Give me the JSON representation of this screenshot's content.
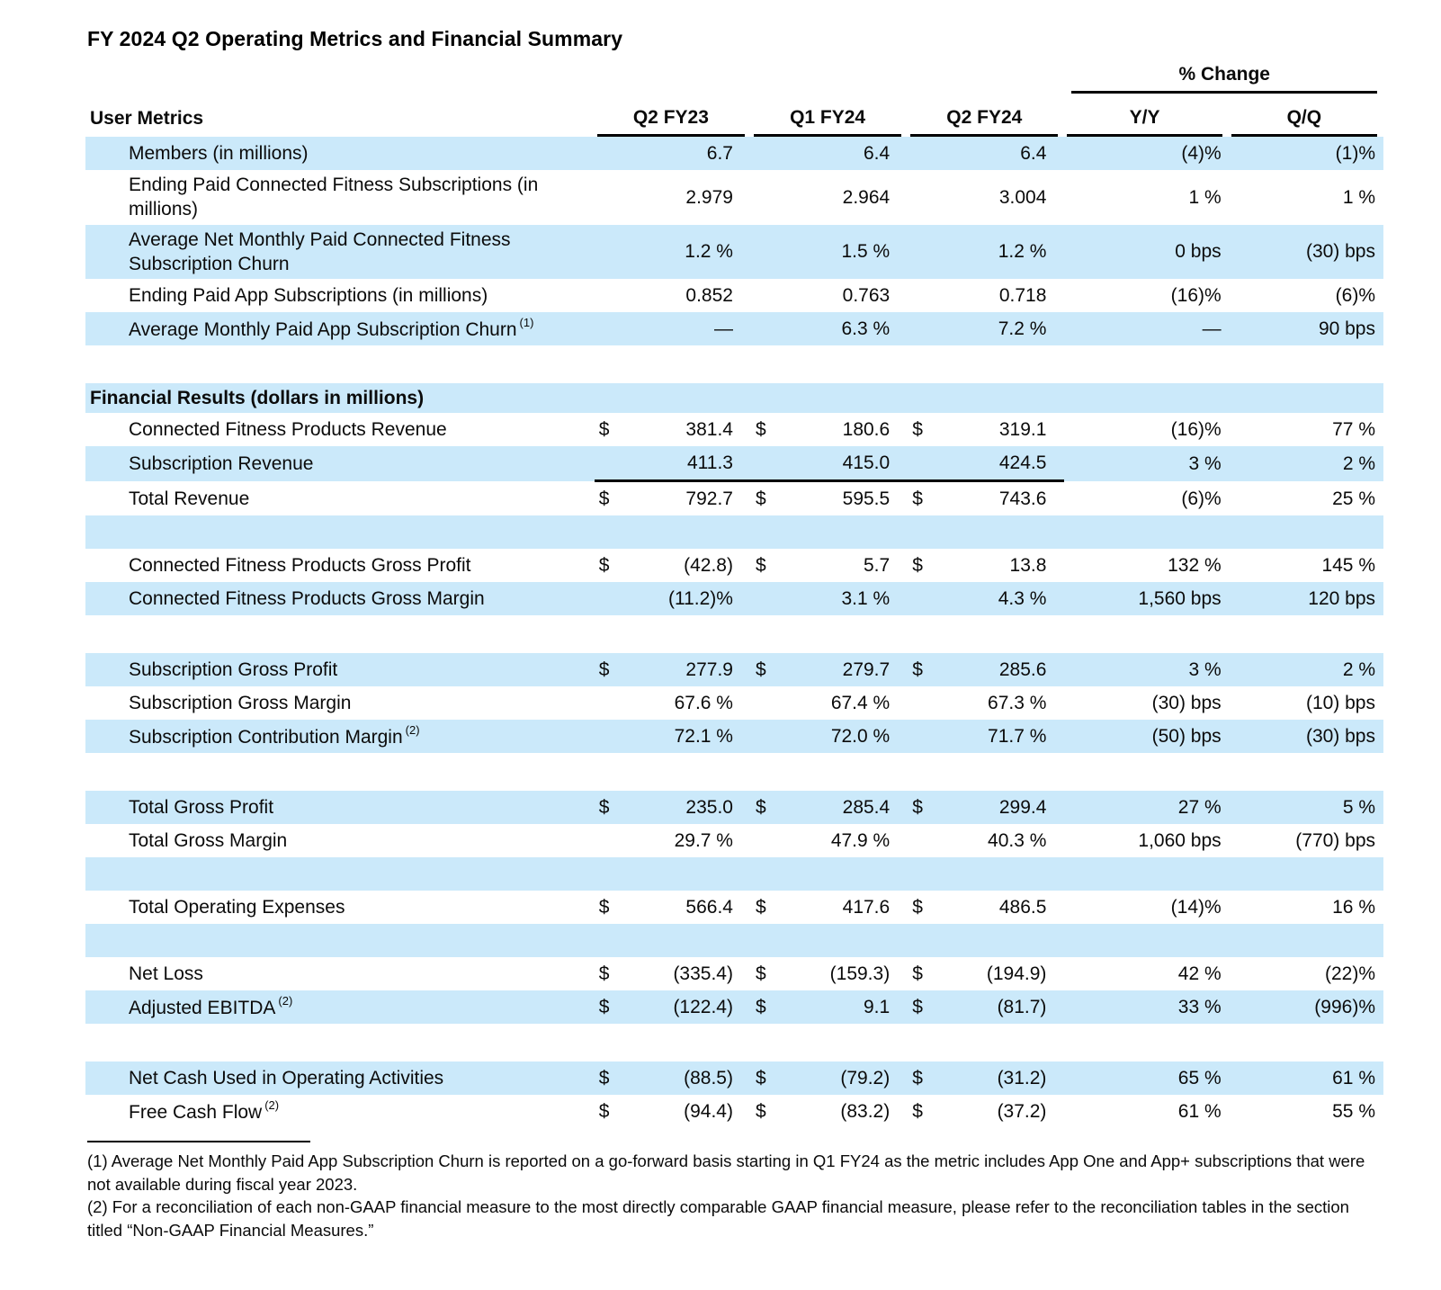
{
  "title": "FY 2024 Q2 Operating Metrics and Financial Summary",
  "table": {
    "change_header": "% Change",
    "columns": {
      "label": "User Metrics",
      "q1": "Q2 FY23",
      "q2": "Q1 FY24",
      "q3": "Q2 FY24",
      "yy": "Y/Y",
      "qq": "Q/Q"
    },
    "rows": [
      {
        "type": "data",
        "bg": "blue",
        "label": "Members (in millions)",
        "sup": "",
        "d1": "",
        "v1": "6.7",
        "d2": "",
        "v2": "6.4",
        "d3": "",
        "v3": "6.4",
        "yy": "(4)%",
        "qq": "(1)%"
      },
      {
        "type": "data",
        "bg": "white",
        "label": "Ending Paid Connected Fitness Subscriptions (in millions)",
        "sup": "",
        "d1": "",
        "v1": "2.979",
        "d2": "",
        "v2": "2.964",
        "d3": "",
        "v3": "3.004",
        "yy": "1 %",
        "qq": "1 %"
      },
      {
        "type": "data",
        "bg": "blue",
        "label": "Average Net Monthly Paid Connected Fitness Subscription Churn",
        "sup": "",
        "d1": "",
        "v1": "1.2 %",
        "d2": "",
        "v2": "1.5 %",
        "d3": "",
        "v3": "1.2 %",
        "yy": "0 bps",
        "qq": "(30) bps"
      },
      {
        "type": "data",
        "bg": "white",
        "label": "Ending Paid App Subscriptions (in millions)",
        "sup": "",
        "d1": "",
        "v1": "0.852",
        "d2": "",
        "v2": "0.763",
        "d3": "",
        "v3": "0.718",
        "yy": "(16)%",
        "qq": "(6)%"
      },
      {
        "type": "data",
        "bg": "blue",
        "label": "Average Monthly Paid App Subscription Churn",
        "sup": "(1)",
        "d1": "",
        "v1": "—",
        "d2": "",
        "v2": "6.3 %",
        "d3": "",
        "v3": "7.2 %",
        "yy": "—",
        "qq": "90 bps"
      },
      {
        "type": "gap"
      },
      {
        "type": "section",
        "bg": "blue",
        "label": "Financial Results (dollars in millions)"
      },
      {
        "type": "data",
        "bg": "white",
        "label": "Connected Fitness Products Revenue",
        "sup": "",
        "d1": "$",
        "v1": "381.4",
        "d2": "$",
        "v2": "180.6",
        "d3": "$",
        "v3": "319.1",
        "yy": "(16)%",
        "qq": "77 %"
      },
      {
        "type": "data",
        "bg": "blue",
        "label": "Subscription Revenue",
        "sup": "",
        "d1": "",
        "v1": "411.3",
        "d2": "",
        "v2": "415.0",
        "d3": "",
        "v3": "424.5",
        "yy": "3 %",
        "qq": "2 %",
        "sumline": true
      },
      {
        "type": "data",
        "bg": "white",
        "label": "Total Revenue",
        "sup": "",
        "d1": "$",
        "v1": "792.7",
        "d2": "$",
        "v2": "595.5",
        "d3": "$",
        "v3": "743.6",
        "yy": "(6)%",
        "qq": "25 %"
      },
      {
        "type": "blank",
        "bg": "blue"
      },
      {
        "type": "data",
        "bg": "white",
        "label": "Connected Fitness Products Gross Profit",
        "sup": "",
        "d1": "$",
        "v1": "(42.8)",
        "d2": "$",
        "v2": "5.7",
        "d3": "$",
        "v3": "13.8",
        "yy": "132 %",
        "qq": "145 %"
      },
      {
        "type": "data",
        "bg": "blue",
        "label": "Connected Fitness Products Gross Margin",
        "sup": "",
        "d1": "",
        "v1": "(11.2)%",
        "d2": "",
        "v2": "3.1 %",
        "d3": "",
        "v3": "4.3 %",
        "yy": "1,560 bps",
        "qq": "120 bps"
      },
      {
        "type": "gap"
      },
      {
        "type": "data",
        "bg": "blue",
        "label": "Subscription Gross Profit",
        "sup": "",
        "d1": "$",
        "v1": "277.9",
        "d2": "$",
        "v2": "279.7",
        "d3": "$",
        "v3": "285.6",
        "yy": "3 %",
        "qq": "2 %"
      },
      {
        "type": "data",
        "bg": "white",
        "label": "Subscription Gross Margin",
        "sup": "",
        "d1": "",
        "v1": "67.6 %",
        "d2": "",
        "v2": "67.4 %",
        "d3": "",
        "v3": "67.3 %",
        "yy": "(30) bps",
        "qq": "(10) bps"
      },
      {
        "type": "data",
        "bg": "blue",
        "label": "Subscription Contribution Margin",
        "sup": "(2)",
        "d1": "",
        "v1": "72.1 %",
        "d2": "",
        "v2": "72.0 %",
        "d3": "",
        "v3": "71.7 %",
        "yy": "(50) bps",
        "qq": "(30) bps"
      },
      {
        "type": "gap"
      },
      {
        "type": "data",
        "bg": "blue",
        "label": "Total Gross Profit",
        "sup": "",
        "d1": "$",
        "v1": "235.0",
        "d2": "$",
        "v2": "285.4",
        "d3": "$",
        "v3": "299.4",
        "yy": "27 %",
        "qq": "5 %"
      },
      {
        "type": "data",
        "bg": "white",
        "label": "Total Gross Margin",
        "sup": "",
        "d1": "",
        "v1": "29.7 %",
        "d2": "",
        "v2": "47.9 %",
        "d3": "",
        "v3": "40.3 %",
        "yy": "1,060 bps",
        "qq": "(770) bps"
      },
      {
        "type": "blank",
        "bg": "blue"
      },
      {
        "type": "data",
        "bg": "white",
        "label": "Total Operating Expenses",
        "sup": "",
        "d1": "$",
        "v1": "566.4",
        "d2": "$",
        "v2": "417.6",
        "d3": "$",
        "v3": "486.5",
        "yy": "(14)%",
        "qq": "16 %"
      },
      {
        "type": "blank",
        "bg": "blue"
      },
      {
        "type": "data",
        "bg": "white",
        "label": "Net Loss",
        "sup": "",
        "d1": "$",
        "v1": "(335.4)",
        "d2": "$",
        "v2": "(159.3)",
        "d3": "$",
        "v3": "(194.9)",
        "yy": "42 %",
        "qq": "(22)%"
      },
      {
        "type": "data",
        "bg": "blue",
        "label": "Adjusted EBITDA",
        "sup": "(2)",
        "d1": "$",
        "v1": "(122.4)",
        "d2": "$",
        "v2": "9.1",
        "d3": "$",
        "v3": "(81.7)",
        "yy": "33 %",
        "qq": "(996)%"
      },
      {
        "type": "gap"
      },
      {
        "type": "data",
        "bg": "blue",
        "label": "Net Cash Used in Operating Activities",
        "sup": "",
        "d1": "$",
        "v1": "(88.5)",
        "d2": "$",
        "v2": "(79.2)",
        "d3": "$",
        "v3": "(31.2)",
        "yy": "65 %",
        "qq": "61 %"
      },
      {
        "type": "data",
        "bg": "white",
        "label": "Free Cash Flow",
        "sup": "(2)",
        "d1": "$",
        "v1": "(94.4)",
        "d2": "$",
        "v2": "(83.2)",
        "d3": "$",
        "v3": "(37.2)",
        "yy": "61 %",
        "qq": "55 %"
      }
    ]
  },
  "footnotes": [
    "(1) Average Net Monthly Paid App Subscription Churn is reported on a go-forward basis starting in Q1 FY24 as the metric includes App One and App+ subscriptions that were not available during fiscal year 2023.",
    "(2) For a reconciliation of each non-GAAP financial measure to the most directly comparable GAAP financial measure, please refer to the reconciliation tables in the section titled “Non-GAAP Financial Measures.”"
  ]
}
